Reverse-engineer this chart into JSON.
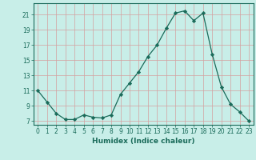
{
  "x": [
    0,
    1,
    2,
    3,
    4,
    5,
    6,
    7,
    8,
    9,
    10,
    11,
    12,
    13,
    14,
    15,
    16,
    17,
    18,
    19,
    20,
    21,
    22,
    23
  ],
  "y": [
    11,
    9.5,
    8.0,
    7.2,
    7.2,
    7.8,
    7.5,
    7.4,
    7.8,
    10.5,
    12.0,
    13.5,
    15.5,
    17.0,
    19.2,
    21.2,
    21.5,
    20.2,
    21.2,
    15.8,
    11.5,
    9.2,
    8.2,
    7.0
  ],
  "line_color": "#1a6b5a",
  "marker": "D",
  "marker_size": 2.2,
  "bg_color": "#c8eee8",
  "grid_color": "#d4a0a0",
  "xlabel": "Humidex (Indice chaleur)",
  "ylabel_ticks": [
    7,
    9,
    11,
    13,
    15,
    17,
    19,
    21
  ],
  "xlim": [
    -0.5,
    23.5
  ],
  "ylim": [
    6.5,
    22.5
  ],
  "xticks": [
    0,
    1,
    2,
    3,
    4,
    5,
    6,
    7,
    8,
    9,
    10,
    11,
    12,
    13,
    14,
    15,
    16,
    17,
    18,
    19,
    20,
    21,
    22,
    23
  ],
  "tick_color": "#1a6b5a",
  "label_color": "#1a6b5a",
  "spine_color": "#1a6b5a",
  "font_size_label": 6.5,
  "font_size_tick": 5.5
}
